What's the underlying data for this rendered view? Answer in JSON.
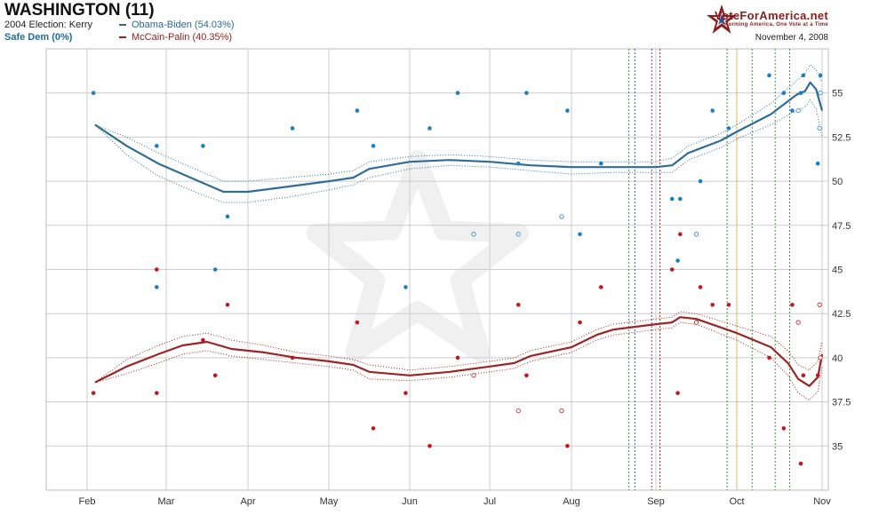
{
  "header": {
    "title": "WASHINGTON (11)",
    "election_2004": "2004 Election: Kerry",
    "rating": "Safe Dem (0%)",
    "date": "November 4, 2008"
  },
  "brand": {
    "name": "VoteForAmerica.net",
    "tagline": "Informing America, One Vote at a Time"
  },
  "colors": {
    "dem": "#2f6d97",
    "dem_points": "#1e7fc0",
    "rep": "#9b2424",
    "rep_points": "#c0181c",
    "grid": "#cccccc"
  },
  "chart_data": {
    "type": "line",
    "ylim": [
      32.5,
      57.5
    ],
    "y_ticks": [
      35,
      37.5,
      40,
      42.5,
      45,
      47.5,
      50,
      52.5,
      55
    ],
    "y_tick_labels": [
      "35",
      "37.5",
      "40",
      "42.5",
      "45",
      "47.5",
      "50",
      "52.5",
      "55"
    ],
    "xlim": [
      -0.05,
      9.0
    ],
    "x_ticks": [
      0,
      1,
      2,
      3,
      4,
      5,
      6,
      7,
      8,
      9
    ],
    "x_tick_labels": [
      "Feb",
      "Mar",
      "Apr",
      "May",
      "Jun",
      "Jul",
      "Aug",
      "Sep",
      "Oct",
      "Nov"
    ],
    "series": [
      {
        "name": "Obama-Biden (54.03%)",
        "key": "dem",
        "trend": [
          [
            0.1,
            53.2
          ],
          [
            0.5,
            52.0
          ],
          [
            0.9,
            51.0
          ],
          [
            1.4,
            50.0
          ],
          [
            1.7,
            49.4
          ],
          [
            2.0,
            49.4
          ],
          [
            2.5,
            49.7
          ],
          [
            3.0,
            50.0
          ],
          [
            3.3,
            50.2
          ],
          [
            3.5,
            50.7
          ],
          [
            4.0,
            51.1
          ],
          [
            4.5,
            51.2
          ],
          [
            5.0,
            51.1
          ],
          [
            5.5,
            50.9
          ],
          [
            6.0,
            50.8
          ],
          [
            6.5,
            50.8
          ],
          [
            7.0,
            50.8
          ],
          [
            7.2,
            50.9
          ],
          [
            7.4,
            51.6
          ],
          [
            7.8,
            52.3
          ],
          [
            8.0,
            52.8
          ],
          [
            8.4,
            53.8
          ],
          [
            8.7,
            54.9
          ],
          [
            8.8,
            55.1
          ],
          [
            8.86,
            55.6
          ],
          [
            8.93,
            55.2
          ],
          [
            9.0,
            54.0
          ]
        ],
        "band_upper": [
          [
            0.1,
            53.2
          ],
          [
            0.5,
            52.5
          ],
          [
            0.9,
            51.6
          ],
          [
            1.4,
            50.6
          ],
          [
            1.7,
            50.0
          ],
          [
            2.0,
            50.0
          ],
          [
            2.5,
            50.2
          ],
          [
            3.0,
            50.4
          ],
          [
            3.3,
            50.6
          ],
          [
            3.5,
            51.1
          ],
          [
            4.0,
            51.4
          ],
          [
            4.5,
            51.5
          ],
          [
            5.0,
            51.4
          ],
          [
            5.5,
            51.2
          ],
          [
            6.0,
            51.1
          ],
          [
            6.5,
            51.1
          ],
          [
            7.0,
            51.1
          ],
          [
            7.2,
            51.3
          ],
          [
            7.4,
            52.0
          ],
          [
            7.8,
            52.7
          ],
          [
            8.0,
            53.2
          ],
          [
            8.4,
            54.4
          ],
          [
            8.7,
            55.7
          ],
          [
            8.8,
            56.1
          ],
          [
            8.86,
            56.6
          ],
          [
            8.93,
            56.3
          ],
          [
            9.0,
            55.6
          ]
        ],
        "band_lower": [
          [
            0.1,
            53.2
          ],
          [
            0.5,
            51.5
          ],
          [
            0.9,
            50.3
          ],
          [
            1.4,
            49.3
          ],
          [
            1.7,
            48.8
          ],
          [
            2.0,
            48.8
          ],
          [
            2.5,
            49.1
          ],
          [
            3.0,
            49.5
          ],
          [
            3.3,
            49.8
          ],
          [
            3.5,
            50.2
          ],
          [
            4.0,
            50.7
          ],
          [
            4.5,
            50.9
          ],
          [
            5.0,
            50.8
          ],
          [
            5.5,
            50.6
          ],
          [
            6.0,
            50.4
          ],
          [
            6.5,
            50.5
          ],
          [
            7.0,
            50.5
          ],
          [
            7.2,
            50.5
          ],
          [
            7.4,
            51.2
          ],
          [
            7.8,
            51.9
          ],
          [
            8.0,
            52.4
          ],
          [
            8.4,
            53.2
          ],
          [
            8.7,
            54.0
          ],
          [
            8.8,
            54.2
          ],
          [
            8.86,
            54.6
          ],
          [
            8.93,
            54.1
          ],
          [
            9.0,
            52.5
          ]
        ],
        "polls": [
          [
            0.08,
            55
          ],
          [
            0.88,
            52
          ],
          [
            1.45,
            52
          ],
          [
            1.75,
            48
          ],
          [
            1.6,
            45
          ],
          [
            0.88,
            44
          ],
          [
            2.55,
            53
          ],
          [
            3.35,
            54
          ],
          [
            3.55,
            52
          ],
          [
            3.95,
            44
          ],
          [
            4.25,
            53
          ],
          [
            4.6,
            55
          ],
          [
            5.35,
            51
          ],
          [
            5.45,
            55
          ],
          [
            5.95,
            54
          ],
          [
            6.1,
            47
          ],
          [
            6.35,
            51
          ],
          [
            7.2,
            49
          ],
          [
            7.3,
            49
          ],
          [
            7.27,
            45.5
          ],
          [
            7.55,
            50
          ],
          [
            7.7,
            54
          ],
          [
            7.9,
            53
          ],
          [
            8.38,
            56
          ],
          [
            8.55,
            55
          ],
          [
            8.65,
            54
          ],
          [
            8.75,
            55
          ],
          [
            8.78,
            56
          ],
          [
            8.95,
            51
          ],
          [
            8.98,
            56
          ]
        ],
        "polls_open": [
          [
            4.8,
            47
          ],
          [
            5.35,
            47
          ],
          [
            5.88,
            48
          ],
          [
            7.5,
            47
          ],
          [
            8.72,
            54
          ],
          [
            8.97,
            53
          ],
          [
            8.98,
            55
          ]
        ]
      },
      {
        "name": "McCain-Palin (40.35%)",
        "key": "rep",
        "trend": [
          [
            0.1,
            38.6
          ],
          [
            0.5,
            39.5
          ],
          [
            0.9,
            40.2
          ],
          [
            1.2,
            40.7
          ],
          [
            1.5,
            40.9
          ],
          [
            1.8,
            40.5
          ],
          [
            2.2,
            40.3
          ],
          [
            2.6,
            40.0
          ],
          [
            3.0,
            39.8
          ],
          [
            3.3,
            39.6
          ],
          [
            3.5,
            39.2
          ],
          [
            4.0,
            39.0
          ],
          [
            4.5,
            39.2
          ],
          [
            5.0,
            39.5
          ],
          [
            5.3,
            39.7
          ],
          [
            5.5,
            40.1
          ],
          [
            6.0,
            40.6
          ],
          [
            6.3,
            41.3
          ],
          [
            6.5,
            41.6
          ],
          [
            7.0,
            41.9
          ],
          [
            7.2,
            42.0
          ],
          [
            7.3,
            42.3
          ],
          [
            7.5,
            42.2
          ],
          [
            8.0,
            41.4
          ],
          [
            8.4,
            40.6
          ],
          [
            8.6,
            39.7
          ],
          [
            8.72,
            38.8
          ],
          [
            8.85,
            38.4
          ],
          [
            8.95,
            38.9
          ],
          [
            9.0,
            40.2
          ]
        ],
        "band_upper": [
          [
            0.1,
            38.6
          ],
          [
            0.5,
            39.9
          ],
          [
            0.9,
            40.7
          ],
          [
            1.2,
            41.2
          ],
          [
            1.5,
            41.4
          ],
          [
            1.8,
            41.0
          ],
          [
            2.2,
            40.7
          ],
          [
            2.6,
            40.3
          ],
          [
            3.0,
            40.1
          ],
          [
            3.3,
            39.9
          ],
          [
            3.5,
            39.6
          ],
          [
            4.0,
            39.3
          ],
          [
            4.5,
            39.5
          ],
          [
            5.0,
            39.8
          ],
          [
            5.3,
            40.0
          ],
          [
            5.5,
            40.4
          ],
          [
            6.0,
            40.9
          ],
          [
            6.3,
            41.6
          ],
          [
            6.5,
            41.9
          ],
          [
            7.0,
            42.2
          ],
          [
            7.2,
            42.3
          ],
          [
            7.3,
            42.6
          ],
          [
            7.5,
            42.5
          ],
          [
            8.0,
            41.8
          ],
          [
            8.4,
            41.2
          ],
          [
            8.6,
            40.4
          ],
          [
            8.72,
            39.6
          ],
          [
            8.85,
            39.3
          ],
          [
            8.95,
            39.8
          ],
          [
            9.0,
            40.9
          ]
        ],
        "band_lower": [
          [
            0.1,
            38.6
          ],
          [
            0.5,
            39.1
          ],
          [
            0.9,
            39.7
          ],
          [
            1.2,
            40.2
          ],
          [
            1.5,
            40.4
          ],
          [
            1.8,
            40.1
          ],
          [
            2.2,
            39.9
          ],
          [
            2.6,
            39.7
          ],
          [
            3.0,
            39.5
          ],
          [
            3.3,
            39.3
          ],
          [
            3.5,
            38.8
          ],
          [
            4.0,
            38.7
          ],
          [
            4.5,
            38.9
          ],
          [
            5.0,
            39.2
          ],
          [
            5.3,
            39.4
          ],
          [
            5.5,
            39.8
          ],
          [
            6.0,
            40.3
          ],
          [
            6.3,
            41.0
          ],
          [
            6.5,
            41.3
          ],
          [
            7.0,
            41.6
          ],
          [
            7.2,
            41.7
          ],
          [
            7.3,
            42.0
          ],
          [
            7.5,
            41.9
          ],
          [
            8.0,
            41.0
          ],
          [
            8.4,
            40.0
          ],
          [
            8.6,
            39.0
          ],
          [
            8.72,
            38.0
          ],
          [
            8.85,
            37.6
          ],
          [
            8.95,
            38.1
          ],
          [
            9.0,
            39.5
          ]
        ],
        "polls": [
          [
            0.08,
            38
          ],
          [
            0.88,
            38
          ],
          [
            0.88,
            45
          ],
          [
            1.45,
            41
          ],
          [
            1.6,
            39
          ],
          [
            1.75,
            43
          ],
          [
            2.55,
            40
          ],
          [
            3.35,
            42
          ],
          [
            3.55,
            36
          ],
          [
            3.95,
            38
          ],
          [
            4.25,
            35
          ],
          [
            4.6,
            40
          ],
          [
            5.35,
            43
          ],
          [
            5.45,
            39
          ],
          [
            5.95,
            35
          ],
          [
            6.1,
            42
          ],
          [
            6.35,
            44
          ],
          [
            7.2,
            45
          ],
          [
            7.27,
            38
          ],
          [
            7.3,
            47
          ],
          [
            7.55,
            44
          ],
          [
            7.7,
            43
          ],
          [
            7.9,
            43
          ],
          [
            8.38,
            40
          ],
          [
            8.55,
            36
          ],
          [
            8.65,
            43
          ],
          [
            8.75,
            34
          ],
          [
            8.78,
            39
          ],
          [
            8.95,
            39
          ],
          [
            8.98,
            40
          ]
        ],
        "polls_open": [
          [
            4.8,
            39
          ],
          [
            5.35,
            37
          ],
          [
            5.88,
            37
          ],
          [
            7.5,
            42
          ],
          [
            8.72,
            42
          ],
          [
            8.97,
            43
          ],
          [
            8.98,
            40
          ]
        ]
      }
    ],
    "event_lines": [
      {
        "x": 6.68,
        "color": "green"
      },
      {
        "x": 6.75,
        "color": "blue"
      },
      {
        "x": 6.95,
        "color": "purple"
      },
      {
        "x": 7.05,
        "color": "red"
      },
      {
        "x": 7.88,
        "color": "green"
      },
      {
        "x": 8.0,
        "color": "orange"
      },
      {
        "x": 8.18,
        "color": "green"
      },
      {
        "x": 8.45,
        "color": "green"
      },
      {
        "x": 8.62,
        "color": "green"
      }
    ]
  }
}
